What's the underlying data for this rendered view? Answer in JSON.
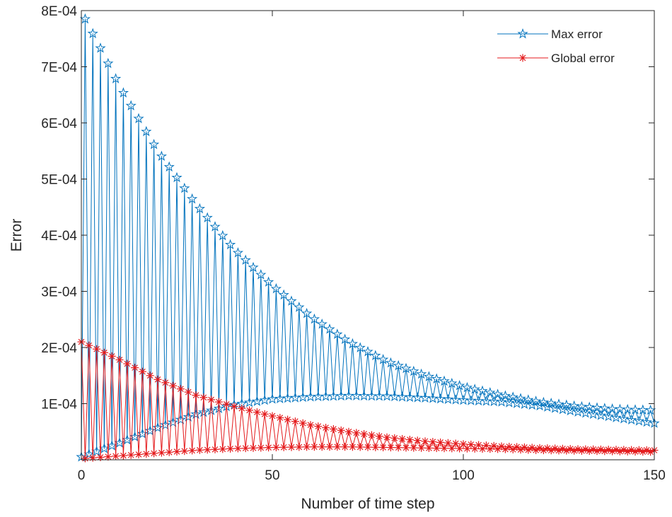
{
  "chart_data": {
    "type": "line",
    "xlabel": "Number of time step",
    "ylabel": "Error",
    "xlim": [
      0,
      150
    ],
    "ylim": [
      0,
      0.0008
    ],
    "x_ticks": [
      0,
      50,
      100,
      150
    ],
    "y_ticks": [
      0.0001,
      0.0002,
      0.0003,
      0.0004,
      0.0005,
      0.0006,
      0.0007,
      0.0008
    ],
    "x_tick_labels": [
      "0",
      "50",
      "100",
      "150"
    ],
    "y_tick_labels": [
      "1E-04",
      "2E-04",
      "3E-04",
      "4E-04",
      "5E-04",
      "6E-04",
      "7E-04",
      "8E-04"
    ],
    "grid": false,
    "legend_position": "top-right",
    "n_points": 151,
    "series": [
      {
        "name": "Max error",
        "color": "#0072BD",
        "marker": "pentagram",
        "upper_envelope": [
          [
            1,
            0.000785
          ],
          [
            5,
            0.000733
          ],
          [
            10,
            0.000665
          ],
          [
            20,
            0.00055
          ],
          [
            30,
            0.000455
          ],
          [
            40,
            0.000375
          ],
          [
            50,
            0.00031
          ],
          [
            60,
            0.000255
          ],
          [
            70,
            0.00021
          ],
          [
            80,
            0.000175
          ],
          [
            90,
            0.00015
          ],
          [
            100,
            0.00013
          ],
          [
            110,
            0.000115
          ],
          [
            120,
            0.000103
          ],
          [
            130,
            9.5e-05
          ],
          [
            140,
            9e-05
          ],
          [
            150,
            8.8e-05
          ]
        ],
        "lower_envelope": [
          [
            0,
            5e-06
          ],
          [
            10,
            3e-05
          ],
          [
            20,
            5.7e-05
          ],
          [
            30,
            8.1e-05
          ],
          [
            40,
            9.8e-05
          ],
          [
            50,
            0.000108
          ],
          [
            60,
            0.000112
          ],
          [
            70,
            0.000114
          ],
          [
            80,
            0.000113
          ],
          [
            90,
            0.00011
          ],
          [
            100,
            0.000106
          ],
          [
            110,
            0.000103
          ],
          [
            120,
            9.6e-05
          ],
          [
            130,
            8.5e-05
          ],
          [
            140,
            7.5e-05
          ],
          [
            150,
            6.5e-05
          ]
        ]
      },
      {
        "name": "Global error",
        "color": "#E41A1C",
        "marker": "asterisk",
        "upper_envelope": [
          [
            0,
            0.00021
          ],
          [
            10,
            0.000178
          ],
          [
            20,
            0.000143
          ],
          [
            30,
            0.000115
          ],
          [
            40,
            9.5e-05
          ],
          [
            50,
            7.8e-05
          ],
          [
            60,
            6.2e-05
          ],
          [
            70,
            5e-05
          ],
          [
            80,
            4e-05
          ],
          [
            90,
            3.3e-05
          ],
          [
            100,
            2.8e-05
          ],
          [
            110,
            2.4e-05
          ],
          [
            120,
            2.1e-05
          ],
          [
            130,
            1.9e-05
          ],
          [
            140,
            1.8e-05
          ],
          [
            150,
            1.7e-05
          ]
        ],
        "lower_envelope": [
          [
            0,
            2e-06
          ],
          [
            10,
            7e-06
          ],
          [
            20,
            1.2e-05
          ],
          [
            30,
            1.7e-05
          ],
          [
            40,
            2e-05
          ],
          [
            50,
            2.2e-05
          ],
          [
            60,
            2.3e-05
          ],
          [
            70,
            2.3e-05
          ],
          [
            80,
            2.2e-05
          ],
          [
            90,
            2.1e-05
          ],
          [
            100,
            2e-05
          ],
          [
            110,
            1.9e-05
          ],
          [
            120,
            1.7e-05
          ],
          [
            130,
            1.6e-05
          ],
          [
            140,
            1.5e-05
          ],
          [
            150,
            1.4e-05
          ]
        ]
      }
    ]
  }
}
